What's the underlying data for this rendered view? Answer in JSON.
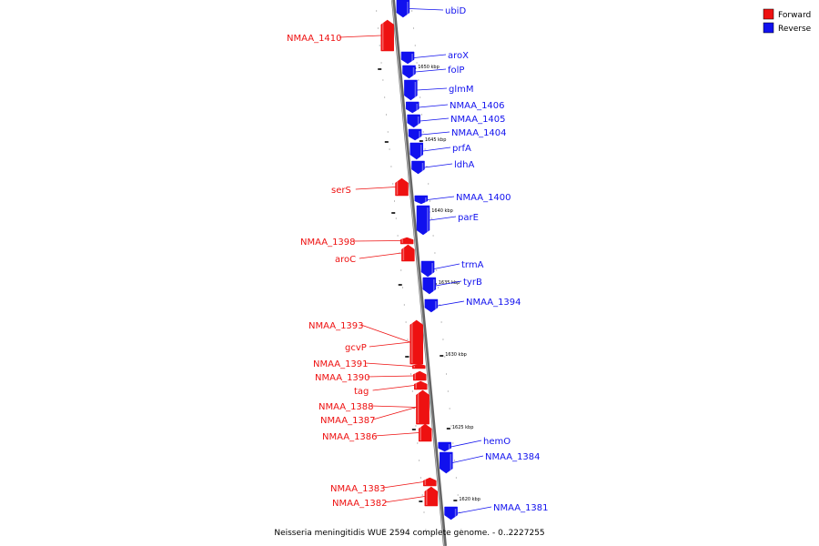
{
  "title": "Neisseria meningitidis WUE 2594 complete genome. - 0..2227255",
  "legend": {
    "forward_label": "Forward",
    "reverse_label": "Reverse",
    "forward_color": "#ee1111",
    "reverse_color": "#1111ee"
  },
  "ticks": [
    "1650 kbp",
    "1645 kbp",
    "1640 kbp",
    "1635 kbp",
    "1630 kbp",
    "1625 kbp",
    "1620 kbp"
  ],
  "genes": [
    {
      "name": "ubiD",
      "strand": "reverse"
    },
    {
      "name": "NMAA_1410",
      "strand": "forward"
    },
    {
      "name": "aroX",
      "strand": "reverse"
    },
    {
      "name": "folP",
      "strand": "reverse"
    },
    {
      "name": "glmM",
      "strand": "reverse"
    },
    {
      "name": "NMAA_1406",
      "strand": "reverse"
    },
    {
      "name": "NMAA_1405",
      "strand": "reverse"
    },
    {
      "name": "NMAA_1404",
      "strand": "reverse"
    },
    {
      "name": "prfA",
      "strand": "reverse"
    },
    {
      "name": "ldhA",
      "strand": "reverse"
    },
    {
      "name": "serS",
      "strand": "forward"
    },
    {
      "name": "NMAA_1400",
      "strand": "reverse"
    },
    {
      "name": "parE",
      "strand": "reverse"
    },
    {
      "name": "NMAA_1398",
      "strand": "forward"
    },
    {
      "name": "aroC",
      "strand": "forward"
    },
    {
      "name": "trmA",
      "strand": "reverse"
    },
    {
      "name": "tyrB",
      "strand": "reverse"
    },
    {
      "name": "NMAA_1394",
      "strand": "reverse"
    },
    {
      "name": "NMAA_1393",
      "strand": "forward"
    },
    {
      "name": "gcvP",
      "strand": "forward"
    },
    {
      "name": "NMAA_1391",
      "strand": "forward"
    },
    {
      "name": "NMAA_1390",
      "strand": "forward"
    },
    {
      "name": "tag",
      "strand": "forward"
    },
    {
      "name": "NMAA_1388",
      "strand": "forward"
    },
    {
      "name": "NMAA_1387",
      "strand": "forward"
    },
    {
      "name": "NMAA_1386",
      "strand": "forward"
    },
    {
      "name": "hemO",
      "strand": "reverse"
    },
    {
      "name": "NMAA_1384",
      "strand": "reverse"
    },
    {
      "name": "NMAA_1383",
      "strand": "forward"
    },
    {
      "name": "NMAA_1382",
      "strand": "forward"
    },
    {
      "name": "NMAA_1381",
      "strand": "reverse"
    }
  ]
}
